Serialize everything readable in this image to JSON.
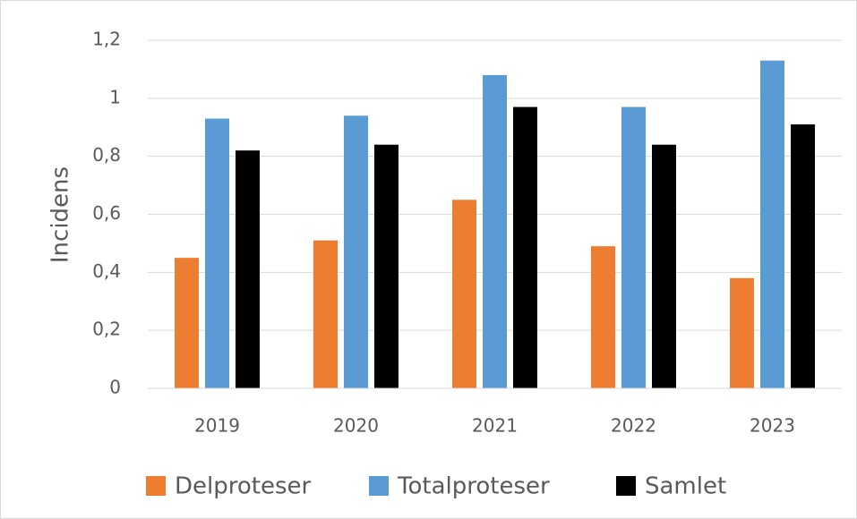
{
  "chart_data": {
    "type": "bar",
    "y_label": "Incidens",
    "categories": [
      "2019",
      "2020",
      "2021",
      "2022",
      "2023"
    ],
    "series": [
      {
        "name": "Delproteser",
        "color": "#ed7d31",
        "values": [
          0.45,
          0.51,
          0.65,
          0.49,
          0.38
        ]
      },
      {
        "name": "Totalproteser",
        "color": "#5b9bd5",
        "values": [
          0.93,
          0.94,
          1.08,
          0.97,
          1.13
        ]
      },
      {
        "name": "Samlet",
        "color": "#000000",
        "values": [
          0.82,
          0.84,
          0.97,
          0.84,
          0.91
        ]
      }
    ],
    "ylim": [
      0,
      1.2
    ],
    "yticks": [
      0,
      {
        "value": 0.2,
        "label": "0,2"
      },
      {
        "value": 0.4,
        "label": "0,4"
      },
      {
        "value": 0.6,
        "label": "0,6"
      },
      {
        "value": 0.8,
        "label": "0,8"
      },
      1,
      {
        "value": 1.2,
        "label": "1,2"
      }
    ],
    "grid": true,
    "legend": "bottom"
  }
}
